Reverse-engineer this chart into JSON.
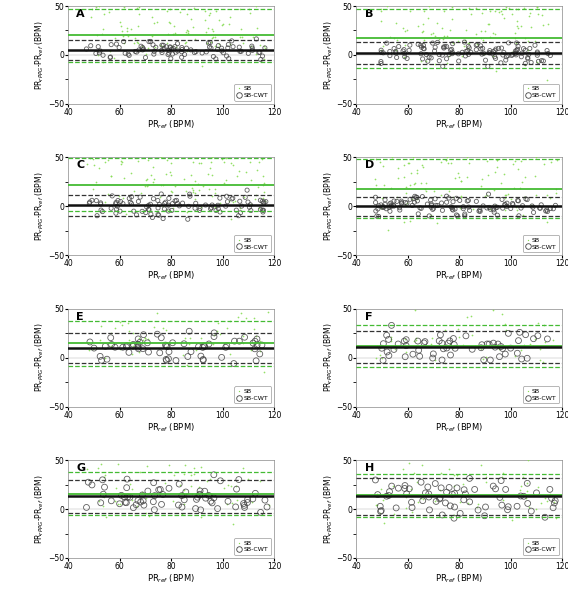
{
  "panels": [
    {
      "label": "A",
      "sb_mean": 20.0,
      "sb_loa_upper": 47.0,
      "sb_loa_lower": -7.0,
      "cwt_mean": 5.0,
      "cwt_loa_upper": 15.0,
      "cwt_loa_lower": -5.0,
      "sb_n": 110,
      "cwt_n": 90
    },
    {
      "label": "B",
      "sb_mean": 17.0,
      "sb_loa_upper": 47.0,
      "sb_loa_lower": -13.0,
      "cwt_mean": 2.0,
      "cwt_loa_upper": 13.0,
      "cwt_loa_lower": -9.0,
      "sb_n": 110,
      "cwt_n": 120
    },
    {
      "label": "C",
      "sb_mean": 22.0,
      "sb_loa_upper": 49.0,
      "sb_loa_lower": -5.0,
      "cwt_mean": 1.0,
      "cwt_loa_upper": 12.0,
      "cwt_loa_lower": -10.0,
      "sb_n": 110,
      "cwt_n": 100
    },
    {
      "label": "D",
      "sb_mean": 18.0,
      "sb_loa_upper": 48.0,
      "sb_loa_lower": -12.0,
      "cwt_mean": 0.0,
      "cwt_loa_upper": 10.0,
      "cwt_loa_lower": -10.0,
      "sb_n": 110,
      "cwt_n": 120
    },
    {
      "label": "E",
      "sb_mean": 15.0,
      "sb_loa_upper": 38.0,
      "sb_loa_lower": -8.0,
      "cwt_mean": 10.0,
      "cwt_loa_upper": 25.0,
      "cwt_loa_lower": -5.0,
      "sb_n": 60,
      "cwt_n": 65
    },
    {
      "label": "F",
      "sb_mean": 12.0,
      "sb_loa_upper": 33.0,
      "sb_loa_lower": -9.0,
      "cwt_mean": 11.0,
      "cwt_loa_upper": 27.0,
      "cwt_loa_lower": -5.0,
      "sb_n": 55,
      "cwt_n": 60
    },
    {
      "label": "G",
      "sb_mean": 16.0,
      "sb_loa_upper": 38.0,
      "sb_loa_lower": -6.0,
      "cwt_mean": 13.0,
      "cwt_loa_upper": 30.0,
      "cwt_loa_lower": -4.0,
      "sb_n": 65,
      "cwt_n": 70
    },
    {
      "label": "H",
      "sb_mean": 14.0,
      "sb_loa_upper": 36.0,
      "sb_loa_lower": -8.0,
      "cwt_mean": 13.0,
      "cwt_loa_upper": 32.0,
      "cwt_loa_lower": -6.0,
      "sb_n": 60,
      "cwt_n": 70
    }
  ],
  "xlim": [
    40,
    120
  ],
  "ylim": [
    -50,
    50
  ],
  "xlabel": "PR$_{ref}$ (BPM)",
  "ylabel": "PR$_{rPPG}$-PR$_{ref}$ (BPM)",
  "sb_dot_color": "#88dd55",
  "cwt_edge_color": "#444444",
  "sb_line_color": "#44bb33",
  "cwt_mean_line_color": "#111111",
  "cwt_loa_line_color": "#333333",
  "bg_color": "#ffffff",
  "xticks": [
    40,
    60,
    80,
    100,
    120
  ],
  "yticks": [
    -50,
    0,
    50
  ],
  "ytick_minor": [
    -25,
    25
  ]
}
